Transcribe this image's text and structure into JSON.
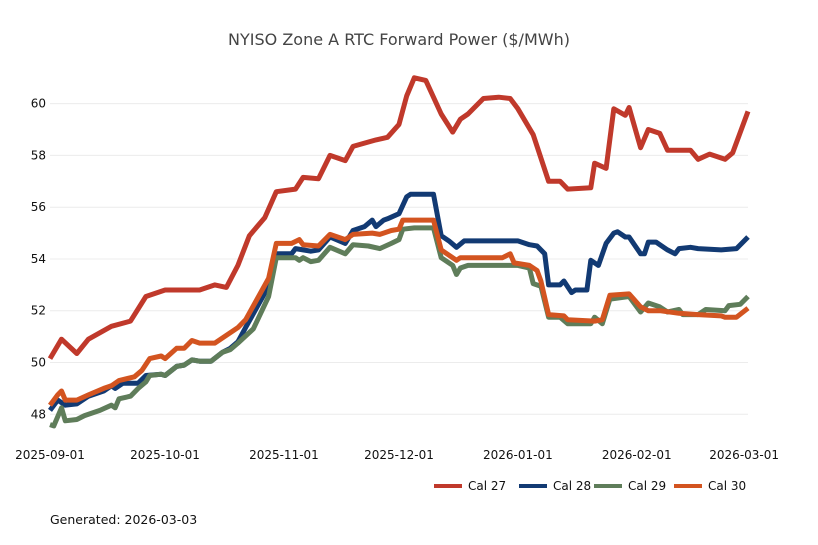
{
  "chart_data": {
    "type": "line",
    "title": "NYISO Zone A RTC Forward Power ($/MWh)",
    "xlabel": "",
    "ylabel": "",
    "xlim": [
      "2025-09-01",
      "2026-03-02"
    ],
    "ylim": [
      47.2,
      61.3
    ],
    "x_ticks": [
      "2025-09-01",
      "2025-10-01",
      "2025-11-01",
      "2025-12-01",
      "2026-01-01",
      "2026-02-01",
      "2026-03-01"
    ],
    "y_ticks": [
      48,
      50,
      52,
      54,
      56,
      58,
      60
    ],
    "grid": "horizontal",
    "legend_position": "bottom-right",
    "series": [
      {
        "name": "Cal 27",
        "color": "#c0392b",
        "points": [
          [
            "2025-09-01",
            50.15
          ],
          [
            "2025-09-04",
            50.9
          ],
          [
            "2025-09-08",
            50.35
          ],
          [
            "2025-09-11",
            50.9
          ],
          [
            "2025-09-17",
            51.4
          ],
          [
            "2025-09-22",
            51.6
          ],
          [
            "2025-09-26",
            52.55
          ],
          [
            "2025-10-01",
            52.8
          ],
          [
            "2025-10-10",
            52.8
          ],
          [
            "2025-10-14",
            53.0
          ],
          [
            "2025-10-17",
            52.9
          ],
          [
            "2025-10-20",
            53.75
          ],
          [
            "2025-10-23",
            54.9
          ],
          [
            "2025-10-27",
            55.6
          ],
          [
            "2025-10-30",
            56.6
          ],
          [
            "2025-11-04",
            56.7
          ],
          [
            "2025-11-06",
            57.15
          ],
          [
            "2025-11-10",
            57.1
          ],
          [
            "2025-11-13",
            58.0
          ],
          [
            "2025-11-17",
            57.8
          ],
          [
            "2025-11-19",
            58.35
          ],
          [
            "2025-11-25",
            58.6
          ],
          [
            "2025-11-28",
            58.7
          ],
          [
            "2025-12-01",
            59.2
          ],
          [
            "2025-12-03",
            60.3
          ],
          [
            "2025-12-05",
            61.0
          ],
          [
            "2025-12-08",
            60.9
          ],
          [
            "2025-12-12",
            59.6
          ],
          [
            "2025-12-15",
            58.9
          ],
          [
            "2025-12-17",
            59.4
          ],
          [
            "2025-12-19",
            59.6
          ],
          [
            "2025-12-23",
            60.2
          ],
          [
            "2025-12-27",
            60.25
          ],
          [
            "2025-12-30",
            60.2
          ],
          [
            "2026-01-01",
            59.8
          ],
          [
            "2026-01-05",
            58.8
          ],
          [
            "2026-01-09",
            57.0
          ],
          [
            "2026-01-12",
            57.0
          ],
          [
            "2026-01-14",
            56.7
          ],
          [
            "2026-01-20",
            56.75
          ],
          [
            "2026-01-21",
            57.7
          ],
          [
            "2026-01-24",
            57.5
          ],
          [
            "2026-01-26",
            59.8
          ],
          [
            "2026-01-29",
            59.55
          ],
          [
            "2026-01-30",
            59.85
          ],
          [
            "2026-02-02",
            58.3
          ],
          [
            "2026-02-04",
            59.0
          ],
          [
            "2026-02-07",
            58.85
          ],
          [
            "2026-02-09",
            58.2
          ],
          [
            "2026-02-15",
            58.2
          ],
          [
            "2026-02-17",
            57.85
          ],
          [
            "2026-02-20",
            58.05
          ],
          [
            "2026-02-24",
            57.85
          ],
          [
            "2026-02-26",
            58.1
          ],
          [
            "2026-03-02",
            59.7
          ]
        ]
      },
      {
        "name": "Cal 28",
        "color": "#123a73",
        "points": [
          [
            "2025-09-01",
            48.15
          ],
          [
            "2025-09-03",
            48.55
          ],
          [
            "2025-09-05",
            48.35
          ],
          [
            "2025-09-08",
            48.4
          ],
          [
            "2025-09-11",
            48.7
          ],
          [
            "2025-09-15",
            48.9
          ],
          [
            "2025-09-17",
            49.1
          ],
          [
            "2025-09-18",
            49.0
          ],
          [
            "2025-09-20",
            49.2
          ],
          [
            "2025-09-24",
            49.2
          ],
          [
            "2025-09-26",
            49.5
          ],
          [
            "2025-09-30",
            49.55
          ],
          [
            "2025-10-01",
            49.5
          ],
          [
            "2025-10-04",
            49.85
          ],
          [
            "2025-10-06",
            49.9
          ],
          [
            "2025-10-08",
            50.1
          ],
          [
            "2025-10-10",
            50.05
          ],
          [
            "2025-10-13",
            50.05
          ],
          [
            "2025-10-16",
            50.4
          ],
          [
            "2025-10-18",
            50.55
          ],
          [
            "2025-10-20",
            50.8
          ],
          [
            "2025-10-22",
            51.35
          ],
          [
            "2025-10-25",
            52.15
          ],
          [
            "2025-10-28",
            52.95
          ],
          [
            "2025-10-30",
            54.2
          ],
          [
            "2025-11-03",
            54.2
          ],
          [
            "2025-11-04",
            54.4
          ],
          [
            "2025-11-06",
            54.35
          ],
          [
            "2025-11-08",
            54.3
          ],
          [
            "2025-11-10",
            54.35
          ],
          [
            "2025-11-13",
            54.85
          ],
          [
            "2025-11-17",
            54.6
          ],
          [
            "2025-11-19",
            55.1
          ],
          [
            "2025-11-22",
            55.25
          ],
          [
            "2025-11-24",
            55.5
          ],
          [
            "2025-11-25",
            55.25
          ],
          [
            "2025-11-27",
            55.5
          ],
          [
            "2025-11-28",
            55.55
          ],
          [
            "2025-12-01",
            55.75
          ],
          [
            "2025-12-03",
            56.4
          ],
          [
            "2025-12-04",
            56.5
          ],
          [
            "2025-12-10",
            56.5
          ],
          [
            "2025-12-12",
            54.9
          ],
          [
            "2025-12-14",
            54.7
          ],
          [
            "2025-12-16",
            54.45
          ],
          [
            "2025-12-18",
            54.7
          ],
          [
            "2025-12-25",
            54.7
          ],
          [
            "2026-01-01",
            54.7
          ],
          [
            "2026-01-04",
            54.55
          ],
          [
            "2026-01-06",
            54.5
          ],
          [
            "2026-01-08",
            54.2
          ],
          [
            "2026-01-09",
            53.0
          ],
          [
            "2026-01-12",
            53.0
          ],
          [
            "2026-01-13",
            53.15
          ],
          [
            "2026-01-15",
            52.7
          ],
          [
            "2026-01-16",
            52.8
          ],
          [
            "2026-01-19",
            52.8
          ],
          [
            "2026-01-20",
            53.95
          ],
          [
            "2026-01-22",
            53.75
          ],
          [
            "2026-01-24",
            54.6
          ],
          [
            "2026-01-26",
            55.0
          ],
          [
            "2026-01-27",
            55.05
          ],
          [
            "2026-01-29",
            54.85
          ],
          [
            "2026-01-30",
            54.85
          ],
          [
            "2026-02-02",
            54.2
          ],
          [
            "2026-02-03",
            54.2
          ],
          [
            "2026-02-04",
            54.65
          ],
          [
            "2026-02-06",
            54.65
          ],
          [
            "2026-02-07",
            54.55
          ],
          [
            "2026-02-09",
            54.35
          ],
          [
            "2026-02-11",
            54.2
          ],
          [
            "2026-02-12",
            54.4
          ],
          [
            "2026-02-15",
            54.45
          ],
          [
            "2026-02-17",
            54.4
          ],
          [
            "2026-02-23",
            54.35
          ],
          [
            "2026-02-27",
            54.4
          ],
          [
            "2026-03-02",
            54.85
          ]
        ]
      },
      {
        "name": "Cal 29",
        "color": "#5f7d5a",
        "points": [
          [
            "2025-09-01",
            47.6
          ],
          [
            "2025-09-02",
            47.55
          ],
          [
            "2025-09-04",
            48.25
          ],
          [
            "2025-09-05",
            47.75
          ],
          [
            "2025-09-08",
            47.8
          ],
          [
            "2025-09-10",
            47.95
          ],
          [
            "2025-09-12",
            48.05
          ],
          [
            "2025-09-14",
            48.15
          ],
          [
            "2025-09-17",
            48.35
          ],
          [
            "2025-09-18",
            48.25
          ],
          [
            "2025-09-19",
            48.6
          ],
          [
            "2025-09-22",
            48.7
          ],
          [
            "2025-09-24",
            49.0
          ],
          [
            "2025-09-26",
            49.25
          ],
          [
            "2025-09-27",
            49.5
          ],
          [
            "2025-09-30",
            49.55
          ],
          [
            "2025-10-01",
            49.5
          ],
          [
            "2025-10-04",
            49.85
          ],
          [
            "2025-10-06",
            49.9
          ],
          [
            "2025-10-08",
            50.1
          ],
          [
            "2025-10-10",
            50.05
          ],
          [
            "2025-10-13",
            50.05
          ],
          [
            "2025-10-16",
            50.4
          ],
          [
            "2025-10-18",
            50.5
          ],
          [
            "2025-10-20",
            50.75
          ],
          [
            "2025-10-24",
            51.3
          ],
          [
            "2025-10-28",
            52.55
          ],
          [
            "2025-10-30",
            54.05
          ],
          [
            "2025-11-04",
            54.05
          ],
          [
            "2025-11-05",
            53.95
          ],
          [
            "2025-11-06",
            54.05
          ],
          [
            "2025-11-08",
            53.9
          ],
          [
            "2025-11-10",
            53.95
          ],
          [
            "2025-11-13",
            54.45
          ],
          [
            "2025-11-17",
            54.2
          ],
          [
            "2025-11-19",
            54.55
          ],
          [
            "2025-11-23",
            54.5
          ],
          [
            "2025-11-26",
            54.4
          ],
          [
            "2025-11-29",
            54.6
          ],
          [
            "2025-12-01",
            54.75
          ],
          [
            "2025-12-02",
            55.15
          ],
          [
            "2025-12-05",
            55.2
          ],
          [
            "2025-12-10",
            55.2
          ],
          [
            "2025-12-12",
            54.05
          ],
          [
            "2025-12-15",
            53.75
          ],
          [
            "2025-12-16",
            53.4
          ],
          [
            "2025-12-17",
            53.65
          ],
          [
            "2025-12-19",
            53.75
          ],
          [
            "2026-01-01",
            53.75
          ],
          [
            "2026-01-04",
            53.65
          ],
          [
            "2026-01-05",
            53.05
          ],
          [
            "2026-01-07",
            52.95
          ],
          [
            "2026-01-09",
            51.75
          ],
          [
            "2026-01-12",
            51.75
          ],
          [
            "2026-01-14",
            51.5
          ],
          [
            "2026-01-20",
            51.5
          ],
          [
            "2026-01-21",
            51.75
          ],
          [
            "2026-01-23",
            51.5
          ],
          [
            "2026-01-25",
            52.45
          ],
          [
            "2026-01-30",
            52.55
          ],
          [
            "2026-02-02",
            51.95
          ],
          [
            "2026-02-04",
            52.3
          ],
          [
            "2026-02-07",
            52.15
          ],
          [
            "2026-02-09",
            51.95
          ],
          [
            "2026-02-12",
            52.05
          ],
          [
            "2026-02-13",
            51.85
          ],
          [
            "2026-02-17",
            51.85
          ],
          [
            "2026-02-19",
            52.05
          ],
          [
            "2026-02-24",
            52.0
          ],
          [
            "2026-02-25",
            52.2
          ],
          [
            "2026-02-28",
            52.25
          ],
          [
            "2026-03-02",
            52.55
          ]
        ]
      },
      {
        "name": "Cal 30",
        "color": "#d35420",
        "points": [
          [
            "2025-09-01",
            48.35
          ],
          [
            "2025-09-03",
            48.75
          ],
          [
            "2025-09-04",
            48.9
          ],
          [
            "2025-09-05",
            48.55
          ],
          [
            "2025-09-08",
            48.55
          ],
          [
            "2025-09-11",
            48.75
          ],
          [
            "2025-09-15",
            49.0
          ],
          [
            "2025-09-17",
            49.1
          ],
          [
            "2025-09-19",
            49.3
          ],
          [
            "2025-09-23",
            49.45
          ],
          [
            "2025-09-25",
            49.7
          ],
          [
            "2025-09-27",
            50.15
          ],
          [
            "2025-09-30",
            50.25
          ],
          [
            "2025-10-01",
            50.15
          ],
          [
            "2025-10-04",
            50.55
          ],
          [
            "2025-10-06",
            50.55
          ],
          [
            "2025-10-08",
            50.85
          ],
          [
            "2025-10-10",
            50.75
          ],
          [
            "2025-10-14",
            50.75
          ],
          [
            "2025-10-17",
            51.05
          ],
          [
            "2025-10-20",
            51.35
          ],
          [
            "2025-10-22",
            51.65
          ],
          [
            "2025-10-25",
            52.45
          ],
          [
            "2025-10-28",
            53.25
          ],
          [
            "2025-10-30",
            54.6
          ],
          [
            "2025-11-03",
            54.6
          ],
          [
            "2025-11-05",
            54.75
          ],
          [
            "2025-11-06",
            54.55
          ],
          [
            "2025-11-10",
            54.5
          ],
          [
            "2025-11-13",
            54.95
          ],
          [
            "2025-11-17",
            54.75
          ],
          [
            "2025-11-19",
            54.95
          ],
          [
            "2025-11-24",
            55.0
          ],
          [
            "2025-11-26",
            54.95
          ],
          [
            "2025-11-29",
            55.1
          ],
          [
            "2025-12-01",
            55.15
          ],
          [
            "2025-12-02",
            55.5
          ],
          [
            "2025-12-10",
            55.5
          ],
          [
            "2025-12-12",
            54.35
          ],
          [
            "2025-12-16",
            53.95
          ],
          [
            "2025-12-17",
            54.05
          ],
          [
            "2025-12-28",
            54.05
          ],
          [
            "2025-12-30",
            54.2
          ],
          [
            "2025-12-31",
            53.85
          ],
          [
            "2026-01-04",
            53.75
          ],
          [
            "2026-01-06",
            53.55
          ],
          [
            "2026-01-07",
            53.15
          ],
          [
            "2026-01-09",
            51.85
          ],
          [
            "2026-01-13",
            51.8
          ],
          [
            "2026-01-14",
            51.65
          ],
          [
            "2026-01-21",
            51.6
          ],
          [
            "2026-01-23",
            51.65
          ],
          [
            "2026-01-25",
            52.6
          ],
          [
            "2026-01-30",
            52.65
          ],
          [
            "2026-02-02",
            52.15
          ],
          [
            "2026-02-04",
            52.0
          ],
          [
            "2026-02-07",
            52.0
          ],
          [
            "2026-02-12",
            51.9
          ],
          [
            "2026-02-17",
            51.85
          ],
          [
            "2026-02-23",
            51.8
          ],
          [
            "2026-02-24",
            51.75
          ],
          [
            "2026-02-27",
            51.75
          ],
          [
            "2026-03-02",
            52.1
          ]
        ]
      }
    ]
  },
  "footer": {
    "generated_label": "Generated: 2026-03-03"
  }
}
